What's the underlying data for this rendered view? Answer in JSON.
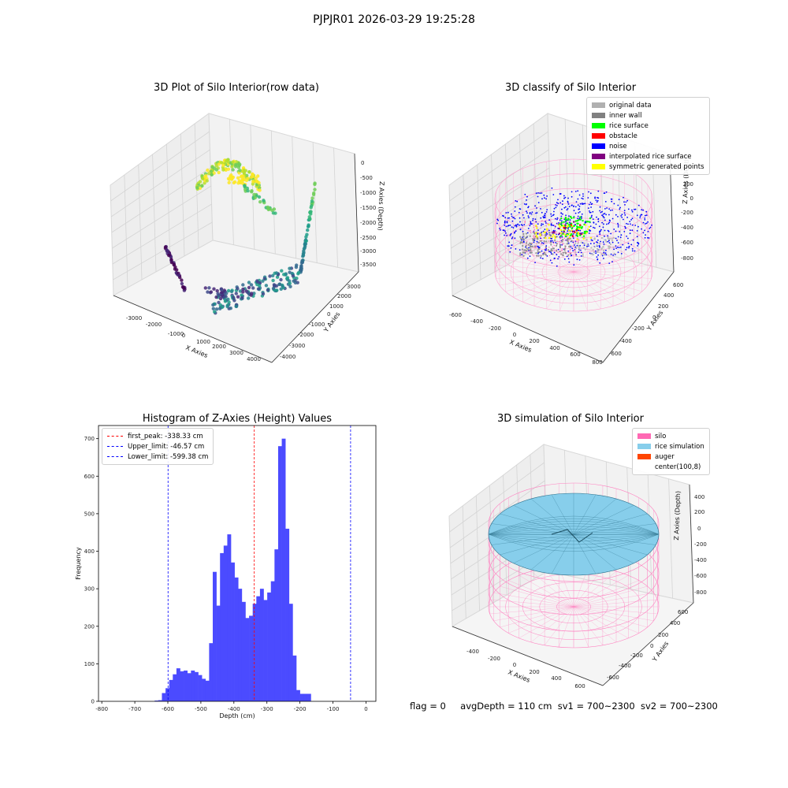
{
  "suptitle": "PJPJR01 2026-03-29 19:25:28",
  "panel1": {
    "title": "3D Plot of Silo Interior(row data)",
    "xlabel": "X Axies",
    "ylabel": "Y Axies",
    "zlabel": "Z Axies (Depth)",
    "xticks": [
      "-3000",
      "-2000",
      "-1000",
      "0",
      "1000",
      "2000",
      "3000",
      "4000"
    ],
    "yticks": [
      "-4000",
      "-3000",
      "-2000",
      "-1000",
      "0",
      "1000",
      "2000",
      "3000"
    ],
    "zticks": [
      "0",
      "-500",
      "-1000",
      "-1500",
      "-2000",
      "-2500",
      "-3000",
      "-3500"
    ]
  },
  "panel2": {
    "title": "3D classify of Silo Interior",
    "xlabel": "X Axies",
    "ylabel": "Y Axies",
    "zlabel": "Z Axies (Depth)",
    "xticks": [
      "-600",
      "-400",
      "-200",
      "0",
      "200",
      "400",
      "600",
      "800"
    ],
    "yticks": [
      "-600",
      "-400",
      "-200",
      "0",
      "200",
      "400",
      "600"
    ],
    "zticks": [
      "200",
      "0",
      "-200",
      "-400",
      "-600",
      "-800"
    ],
    "ztick_top": "400",
    "legend": [
      {
        "label": "original data",
        "color": "#b0b0b0"
      },
      {
        "label": "inner wall",
        "color": "#808080"
      },
      {
        "label": "rice surface",
        "color": "#00ff00"
      },
      {
        "label": "obstacle",
        "color": "#ff0000"
      },
      {
        "label": "noise",
        "color": "#0000ff"
      },
      {
        "label": "interpolated rice surface",
        "color": "#800080"
      },
      {
        "label": "symmetric generated points",
        "color": "#ffff00"
      }
    ]
  },
  "panel3": {
    "title": "Histogram of Z-Axies (Height) Values",
    "xlabel": "Depth (cm)",
    "ylabel": "Frequency",
    "legend": [
      {
        "label": "first_peak: -338.33 cm",
        "color": "#ff0000"
      },
      {
        "label": "Upper_limit: -46.57 cm",
        "color": "#0000ff"
      },
      {
        "label": "Lower_limit: -599.38 cm",
        "color": "#0000ff"
      }
    ]
  },
  "panel4": {
    "title": "3D simulation of Silo Interior",
    "xlabel": "X Axies",
    "ylabel": "Y Axies",
    "zlabel": "Z Axies (Depth)",
    "xticks": [
      "-400",
      "-200",
      "0",
      "200",
      "400",
      "600"
    ],
    "yticks": [
      "-600",
      "-400",
      "-200",
      "0",
      "200",
      "400",
      "600"
    ],
    "zticks": [
      "400",
      "200",
      "0",
      "-200",
      "-400",
      "-600",
      "-800"
    ],
    "legend": [
      {
        "label": "silo",
        "color": "#ff69b4"
      },
      {
        "label": "rice simulation",
        "color": "#87ceeb"
      },
      {
        "label": "auger",
        "color": "#ff4500"
      },
      {
        "label": "center(100,8)",
        "color": "#ffffff"
      }
    ]
  },
  "footer": {
    "flag": "flag = 0",
    "avg": "avgDepth = 110 cm",
    "sv1": "sv1 = 700~2300",
    "sv2": "sv2 = 700~2300"
  },
  "chart_data": [
    {
      "type": "scatter",
      "title": "3D Plot of Silo Interior(row data)",
      "xlabel": "X Axies",
      "ylabel": "Y Axies",
      "zlabel": "Z Axies (Depth)",
      "xlim": [
        -3500,
        4500
      ],
      "ylim": [
        -4000,
        3500
      ],
      "zlim": [
        -3700,
        200
      ]
    },
    {
      "type": "scatter",
      "title": "3D classify of Silo Interior",
      "xlabel": "X Axies",
      "ylabel": "Y Axies",
      "zlabel": "Z Axies (Depth)",
      "xlim": [
        -650,
        850
      ],
      "ylim": [
        -700,
        700
      ],
      "zlim": [
        -900,
        400
      ],
      "series": [
        {
          "name": "original data"
        },
        {
          "name": "inner wall"
        },
        {
          "name": "rice surface"
        },
        {
          "name": "obstacle"
        },
        {
          "name": "noise"
        },
        {
          "name": "interpolated rice surface"
        },
        {
          "name": "symmetric generated points"
        }
      ]
    },
    {
      "type": "bar",
      "title": "Histogram of Z-Axies (Height) Values",
      "xlabel": "Depth (cm)",
      "ylabel": "Frequency",
      "xlim": [
        -810,
        30
      ],
      "ylim": [
        0,
        735
      ],
      "xticks": [
        -800,
        -700,
        -600,
        -500,
        -400,
        -300,
        -200,
        -100,
        0
      ],
      "yticks": [
        0,
        100,
        200,
        300,
        400,
        500,
        600,
        700
      ],
      "bin_width": 11,
      "bin_starts": [
        -640,
        -629,
        -618,
        -607,
        -596,
        -585,
        -574,
        -563,
        -552,
        -541,
        -530,
        -519,
        -508,
        -497,
        -486,
        -475,
        -464,
        -453,
        -442,
        -431,
        -420,
        -409,
        -398,
        -387,
        -376,
        -365,
        -354,
        -343,
        -332,
        -321,
        -310,
        -299,
        -288,
        -277,
        -266,
        -255,
        -244,
        -233,
        -222,
        -211,
        -200,
        -189,
        -178,
        -167,
        -156,
        -145,
        -134,
        -123,
        -112,
        -101,
        -90,
        -79,
        -68,
        -57,
        -46,
        -35,
        -24
      ],
      "values": [
        2,
        3,
        22,
        35,
        57,
        72,
        88,
        80,
        82,
        75,
        82,
        78,
        70,
        60,
        55,
        155,
        345,
        255,
        395,
        415,
        445,
        370,
        330,
        300,
        265,
        222,
        228,
        260,
        280,
        300,
        270,
        290,
        320,
        405,
        680,
        700,
        460,
        260,
        122,
        30,
        20,
        20,
        20,
        0,
        0,
        0,
        0,
        0,
        0,
        0,
        0,
        0,
        0,
        0,
        0,
        0,
        0
      ],
      "vlines": [
        {
          "label": "first_peak: -338.33 cm",
          "x": -338.33,
          "color": "#ff0000"
        },
        {
          "label": "Upper_limit: -46.57 cm",
          "x": -46.57,
          "color": "#0000ff"
        },
        {
          "label": "Lower_limit: -599.38 cm",
          "x": -599.38,
          "color": "#0000ff"
        }
      ],
      "bar_color": "#4b4bff"
    },
    {
      "type": "area",
      "title": "3D simulation of Silo Interior",
      "xlabel": "X Axies",
      "ylabel": "Y Axies",
      "zlabel": "Z Axies (Depth)",
      "xlim": [
        -500,
        700
      ],
      "ylim": [
        -700,
        700
      ],
      "zlim": [
        -900,
        450
      ],
      "series": [
        {
          "name": "silo"
        },
        {
          "name": "rice simulation"
        },
        {
          "name": "auger"
        }
      ]
    }
  ]
}
